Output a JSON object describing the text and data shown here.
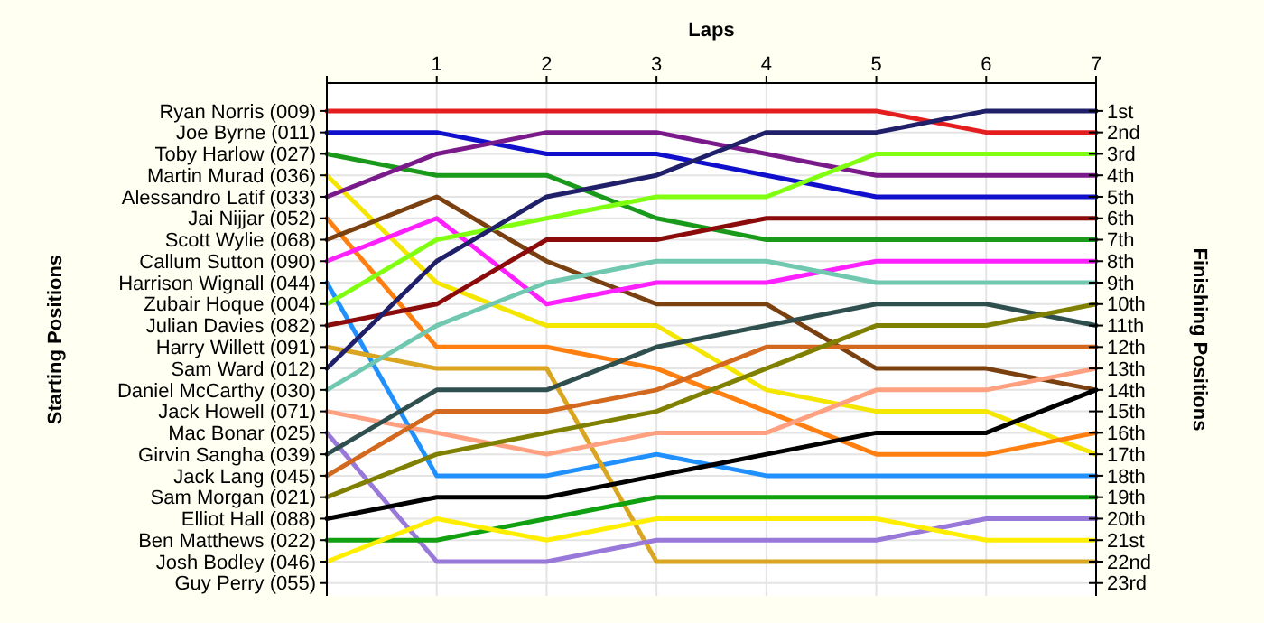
{
  "chart_data": {
    "type": "line",
    "xlabel": "Laps",
    "ylabel": "Finishing Positions",
    "x": [
      0,
      1,
      2,
      3,
      4,
      5,
      6,
      7
    ],
    "xlim": [
      0,
      7
    ],
    "xticks": [
      {
        "value": 0,
        "label": null
      },
      1,
      2,
      3,
      4,
      5,
      6,
      7
    ],
    "annotations": [
      "Starting Positions",
      "Ryan Norris (009)",
      "Joe Byrne (011)",
      "Toby Harlow (027)",
      "Martin Murad (036)",
      "Alessandro Latif (033)",
      "Jai Nijjar (052)",
      "Scott Wylie (068)",
      "Callum Sutton (090)",
      "Harrison Wignall (044)",
      "Zubair Hoque (004)",
      "Julian Davies (082)",
      "Harry Willett (091)",
      "Sam Ward (012)",
      "Daniel McCarthy (030)",
      "Jack Howell (071)",
      "Mac Bonar (025)",
      "Girvin Sangha (039)",
      "Jack Lang (045)",
      "Sam Morgan (021)",
      "Elliot Hall (088)",
      "Ben Matthews (022)",
      "Josh Bodley (046)",
      "Guy Perry (055)"
    ],
    "ylim": [
      23.6,
      -0.3
    ],
    "yticks": [
      {
        "value": 1,
        "label": "1st"
      },
      {
        "value": 2,
        "label": "2nd"
      },
      {
        "value": 3,
        "label": "3rd"
      },
      {
        "value": 4,
        "label": "4th"
      },
      {
        "value": 5,
        "label": "5th"
      },
      {
        "value": 6,
        "label": "6th"
      },
      {
        "value": 7,
        "label": "7th"
      },
      {
        "value": 8,
        "label": "8th"
      },
      {
        "value": 9,
        "label": "9th"
      },
      {
        "value": 10,
        "label": "10th"
      },
      {
        "value": 11,
        "label": "11th"
      },
      {
        "value": 12,
        "label": "12th"
      },
      {
        "value": 13,
        "label": "13th"
      },
      {
        "value": 14,
        "label": "14th"
      },
      {
        "value": 15,
        "label": "15th"
      },
      {
        "value": 16,
        "label": "16th"
      },
      {
        "value": 17,
        "label": "17th"
      },
      {
        "value": 18,
        "label": "18th"
      },
      {
        "value": 19,
        "label": "19th"
      },
      {
        "value": 20,
        "label": "20th"
      },
      {
        "value": 21,
        "label": "21st"
      },
      {
        "value": 22,
        "label": "22nd"
      },
      {
        "value": 23,
        "label": "23rd"
      }
    ],
    "grid": true,
    "marker": "none",
    "line_style": "solid",
    "series": [
      {
        "color": "#e41e1e",
        "values": [
          1,
          1,
          1,
          1,
          1,
          1,
          2,
          2
        ]
      },
      {
        "color": "#1010cc",
        "values": [
          2,
          2,
          3,
          3,
          4,
          5,
          5,
          5
        ]
      },
      {
        "color": "#1a9a1a",
        "values": [
          3,
          4,
          4,
          6,
          7,
          7,
          7,
          7
        ]
      },
      {
        "color": "#f5e600",
        "values": [
          4,
          9,
          11,
          11,
          14,
          15,
          15,
          17
        ]
      },
      {
        "color": "#7a1a8a",
        "values": [
          5,
          3,
          2,
          2,
          3,
          4,
          4,
          4
        ]
      },
      {
        "color": "#ff7f10",
        "values": [
          6,
          12,
          12,
          13,
          15,
          17,
          17,
          16
        ]
      },
      {
        "color": "#7a4010",
        "values": [
          7,
          5,
          8,
          10,
          10,
          13,
          13,
          14
        ]
      },
      {
        "color": "#ff20ff",
        "values": [
          8,
          6,
          10,
          9,
          9,
          8,
          8,
          8
        ]
      },
      {
        "color": "#2090ff",
        "values": [
          9,
          18,
          18,
          17,
          18,
          18,
          18,
          18
        ]
      },
      {
        "color": "#80ff10",
        "values": [
          10,
          7,
          6,
          5,
          5,
          3,
          3,
          3
        ]
      },
      {
        "color": "#8b0a0a",
        "values": [
          11,
          10,
          7,
          7,
          6,
          6,
          6,
          6
        ]
      },
      {
        "color": "#daa520",
        "values": [
          12,
          13,
          13,
          22,
          22,
          22,
          22,
          22
        ]
      },
      {
        "color": "#20206a",
        "values": [
          13,
          8,
          5,
          4,
          2,
          2,
          1,
          1
        ]
      },
      {
        "color": "#70c8b0",
        "values": [
          14,
          11,
          9,
          8,
          8,
          9,
          9,
          9
        ]
      },
      {
        "color": "#ffa080",
        "values": [
          15,
          16,
          17,
          16,
          16,
          14,
          14,
          13
        ]
      },
      {
        "color": "#9878d8",
        "values": [
          16,
          22,
          22,
          21,
          21,
          21,
          20,
          20
        ]
      },
      {
        "color": "#2f4f4f",
        "values": [
          17,
          14,
          14,
          12,
          11,
          10,
          10,
          11
        ]
      },
      {
        "color": "#d2691e",
        "values": [
          18,
          15,
          15,
          14,
          12,
          12,
          12,
          12
        ]
      },
      {
        "color": "#808000",
        "values": [
          19,
          17,
          16,
          15,
          13,
          11,
          11,
          10
        ]
      },
      {
        "color": "#000000",
        "values": [
          20,
          19,
          19,
          18,
          17,
          16,
          16,
          14
        ]
      },
      {
        "color": "#10a010",
        "values": [
          21,
          21,
          20,
          19,
          19,
          19,
          19,
          19
        ]
      },
      {
        "color": "#ffee00",
        "values": [
          22,
          20,
          21,
          20,
          20,
          20,
          21,
          21
        ]
      }
    ]
  }
}
